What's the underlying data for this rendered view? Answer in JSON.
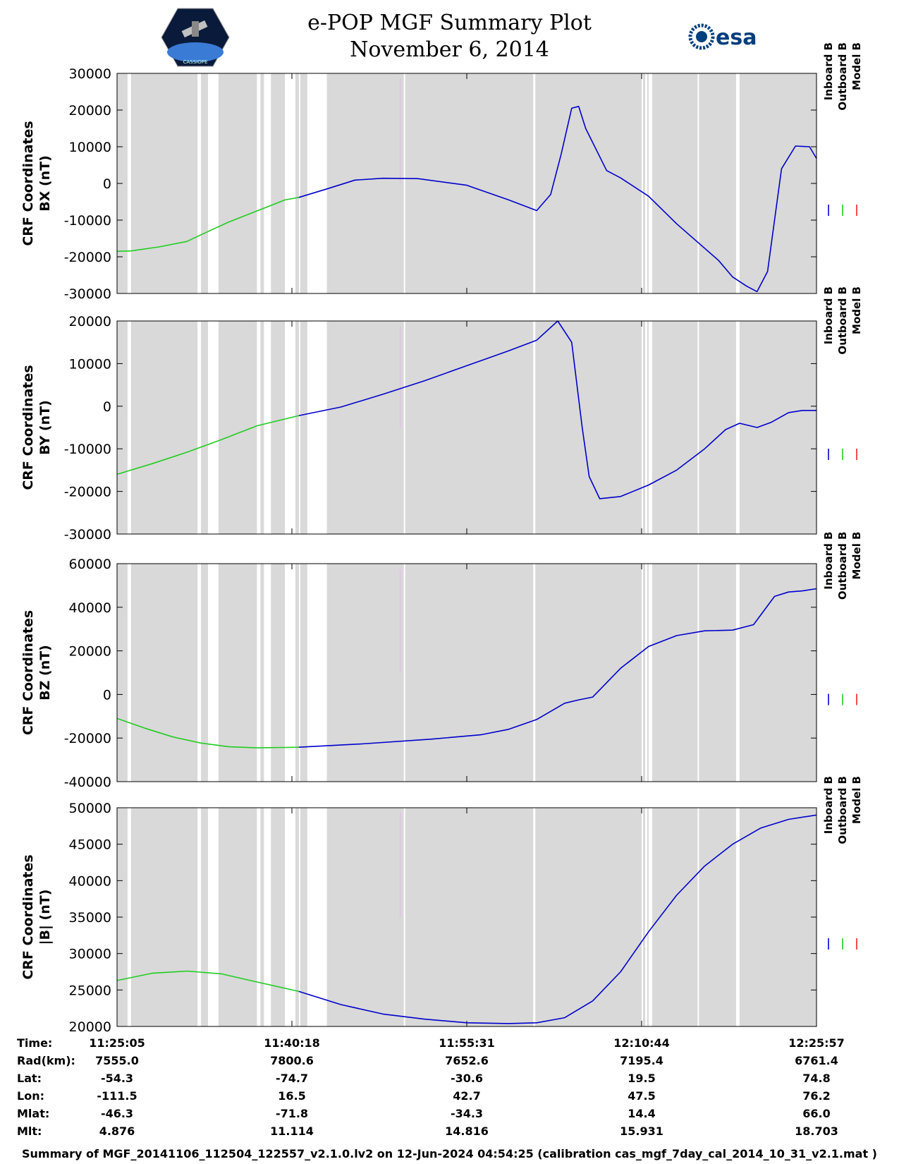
{
  "header": {
    "title_line1": "e-POP MGF Summary Plot",
    "title_line2": "November 6, 2014",
    "left_logo_text": "CASSIOPE",
    "right_logo_text": "esa"
  },
  "colors": {
    "inboard": "#0000cc",
    "outboard": "#22cc22",
    "model": "#ee2222",
    "background_fill": "#d9d9d9",
    "gap_fill": "#ffffff"
  },
  "chart_data": [
    {
      "type": "line",
      "ylabel_line1": "CRF Coordinates",
      "ylabel_line2": "BX (nT)",
      "ylim": [
        -30000,
        30000
      ],
      "yticks": [
        "30000",
        "20000",
        "10000",
        "0",
        "-10000",
        "-20000",
        "-30000"
      ],
      "legend": [
        "Inboard B",
        "Outboard B",
        "Model B"
      ],
      "series": [
        {
          "name": "Outboard B",
          "x": [
            0,
            0.02,
            0.06,
            0.1,
            0.12,
            0.16,
            0.2,
            0.24,
            0.26
          ],
          "values": [
            -18500,
            -18400,
            -17300,
            -15800,
            -14000,
            -10500,
            -7500,
            -4500,
            -3800
          ]
        },
        {
          "name": "Inboard B",
          "x": [
            0.26,
            0.3,
            0.34,
            0.38,
            0.43,
            0.5,
            0.56,
            0.6,
            0.62,
            0.635,
            0.65,
            0.66,
            0.67,
            0.7,
            0.72,
            0.76,
            0.8,
            0.86,
            0.88,
            0.9,
            0.915,
            0.93,
            0.95,
            0.97,
            0.99,
            1.0
          ],
          "values": [
            -3800,
            -1500,
            900,
            1400,
            1300,
            -500,
            -4500,
            -7400,
            -3000,
            8000,
            20500,
            21000,
            15000,
            3500,
            1500,
            -3500,
            -11000,
            -21000,
            -25500,
            -28000,
            -29500,
            -24000,
            4000,
            10200,
            10000,
            6800
          ]
        }
      ],
      "gaps": [
        [
          0.015,
          0.02
        ],
        [
          0.115,
          0.12
        ],
        [
          0.13,
          0.145
        ],
        [
          0.2,
          0.205
        ],
        [
          0.21,
          0.22
        ],
        [
          0.24,
          0.255
        ],
        [
          0.26,
          0.262
        ],
        [
          0.272,
          0.3
        ],
        [
          0.41,
          0.412
        ],
        [
          0.595,
          0.598
        ],
        [
          0.75,
          0.752
        ],
        [
          0.755,
          0.758
        ],
        [
          0.76,
          0.765
        ],
        [
          0.83,
          0.832
        ],
        [
          0.885,
          0.89
        ]
      ]
    },
    {
      "type": "line",
      "ylabel_line1": "CRF Coordinates",
      "ylabel_line2": "BY (nT)",
      "ylim": [
        -30000,
        20000
      ],
      "yticks": [
        "20000",
        "10000",
        "0",
        "-10000",
        "-20000",
        "-30000"
      ],
      "legend": [
        "Inboard B",
        "Outboard B",
        "Model B"
      ],
      "series": [
        {
          "name": "Outboard B",
          "x": [
            0,
            0.05,
            0.1,
            0.15,
            0.2,
            0.26
          ],
          "values": [
            -16000,
            -13500,
            -10800,
            -7800,
            -4600,
            -2200
          ]
        },
        {
          "name": "Inboard B",
          "x": [
            0.26,
            0.32,
            0.38,
            0.44,
            0.5,
            0.56,
            0.6,
            0.63,
            0.65,
            0.665,
            0.675,
            0.69,
            0.72,
            0.76,
            0.8,
            0.84,
            0.87,
            0.89,
            0.915,
            0.935,
            0.96,
            0.98,
            1.0
          ],
          "values": [
            -2200,
            -200,
            2800,
            6000,
            9500,
            13000,
            15500,
            20000,
            15000,
            -5000,
            -16500,
            -21700,
            -21200,
            -18500,
            -15000,
            -10000,
            -5500,
            -4000,
            -5000,
            -3800,
            -1500,
            -1000,
            -1000
          ]
        }
      ],
      "gaps": [
        [
          0.015,
          0.02
        ],
        [
          0.115,
          0.12
        ],
        [
          0.13,
          0.145
        ],
        [
          0.2,
          0.205
        ],
        [
          0.21,
          0.22
        ],
        [
          0.24,
          0.255
        ],
        [
          0.26,
          0.262
        ],
        [
          0.272,
          0.3
        ],
        [
          0.41,
          0.412
        ],
        [
          0.595,
          0.598
        ],
        [
          0.75,
          0.752
        ],
        [
          0.755,
          0.758
        ],
        [
          0.76,
          0.765
        ],
        [
          0.83,
          0.832
        ],
        [
          0.885,
          0.89
        ]
      ]
    },
    {
      "type": "line",
      "ylabel_line1": "CRF Coordinates",
      "ylabel_line2": "BZ (nT)",
      "ylim": [
        -40000,
        60000
      ],
      "yticks": [
        "60000",
        "40000",
        "20000",
        "0",
        "-20000",
        "-40000"
      ],
      "legend": [
        "Inboard B",
        "Outboard B",
        "Model B"
      ],
      "series": [
        {
          "name": "Outboard B",
          "x": [
            0,
            0.04,
            0.08,
            0.12,
            0.16,
            0.2,
            0.24,
            0.26
          ],
          "values": [
            -11000,
            -15500,
            -19500,
            -22300,
            -24000,
            -24500,
            -24300,
            -24200
          ]
        },
        {
          "name": "Inboard B",
          "x": [
            0.26,
            0.35,
            0.45,
            0.52,
            0.56,
            0.6,
            0.64,
            0.66,
            0.68,
            0.72,
            0.76,
            0.8,
            0.84,
            0.88,
            0.91,
            0.94,
            0.96,
            0.98,
            1.0
          ],
          "values": [
            -24200,
            -22700,
            -20500,
            -18500,
            -16000,
            -11500,
            -4000,
            -2500,
            -1200,
            12000,
            22000,
            27000,
            29200,
            29500,
            32000,
            45000,
            47000,
            47500,
            48500
          ]
        }
      ],
      "gaps": [
        [
          0.015,
          0.02
        ],
        [
          0.115,
          0.12
        ],
        [
          0.13,
          0.145
        ],
        [
          0.2,
          0.205
        ],
        [
          0.21,
          0.22
        ],
        [
          0.24,
          0.255
        ],
        [
          0.26,
          0.262
        ],
        [
          0.272,
          0.3
        ],
        [
          0.41,
          0.412
        ],
        [
          0.595,
          0.598
        ],
        [
          0.75,
          0.752
        ],
        [
          0.755,
          0.758
        ],
        [
          0.76,
          0.765
        ],
        [
          0.83,
          0.832
        ],
        [
          0.885,
          0.89
        ]
      ]
    },
    {
      "type": "line",
      "ylabel_line1": "CRF Coordinates",
      "ylabel_line2": "|B| (nT)",
      "ylim": [
        20000,
        50000
      ],
      "yticks": [
        "50000",
        "45000",
        "40000",
        "35000",
        "30000",
        "25000",
        "20000"
      ],
      "legend": [
        "Inboard B",
        "Outboard B",
        "Model B"
      ],
      "series": [
        {
          "name": "Outboard B",
          "x": [
            0,
            0.05,
            0.1,
            0.15,
            0.2,
            0.26
          ],
          "values": [
            26300,
            27300,
            27600,
            27200,
            26100,
            24800
          ]
        },
        {
          "name": "Inboard B",
          "x": [
            0.26,
            0.32,
            0.38,
            0.44,
            0.5,
            0.56,
            0.6,
            0.64,
            0.68,
            0.72,
            0.76,
            0.8,
            0.84,
            0.88,
            0.92,
            0.96,
            1.0
          ],
          "values": [
            24800,
            23000,
            21700,
            21000,
            20500,
            20400,
            20500,
            21200,
            23500,
            27500,
            33000,
            38000,
            42000,
            45000,
            47200,
            48400,
            49000
          ]
        }
      ],
      "gaps": [
        [
          0.015,
          0.02
        ],
        [
          0.115,
          0.12
        ],
        [
          0.13,
          0.145
        ],
        [
          0.2,
          0.205
        ],
        [
          0.21,
          0.22
        ],
        [
          0.24,
          0.255
        ],
        [
          0.26,
          0.262
        ],
        [
          0.272,
          0.3
        ],
        [
          0.41,
          0.412
        ],
        [
          0.595,
          0.598
        ],
        [
          0.75,
          0.752
        ],
        [
          0.755,
          0.758
        ],
        [
          0.76,
          0.765
        ],
        [
          0.83,
          0.832
        ],
        [
          0.885,
          0.89
        ]
      ]
    }
  ],
  "ephemeris": {
    "labels": [
      "Time:",
      "Rad(km):",
      "Lat:",
      "Lon:",
      "Mlat:",
      "Mlt:"
    ],
    "columns": [
      [
        "11:25:05",
        "7555.0",
        "-54.3",
        "-111.5",
        "-46.3",
        "4.876"
      ],
      [
        "11:40:18",
        "7800.6",
        "-74.7",
        "16.5",
        "-71.8",
        "11.114"
      ],
      [
        "11:55:31",
        "7652.6",
        "-30.6",
        "42.7",
        "-34.3",
        "14.816"
      ],
      [
        "12:10:44",
        "7195.4",
        "19.5",
        "47.5",
        "14.4",
        "15.931"
      ],
      [
        "12:25:57",
        "6761.4",
        "74.8",
        "76.2",
        "66.0",
        "18.703"
      ]
    ]
  },
  "footer": "Summary of MGF_20141106_112504_122557_v2.1.0.lv2 on 12-Jun-2024 04:54:25 (calibration cas_mgf_7day_cal_2014_10_31_v2.1.mat )"
}
